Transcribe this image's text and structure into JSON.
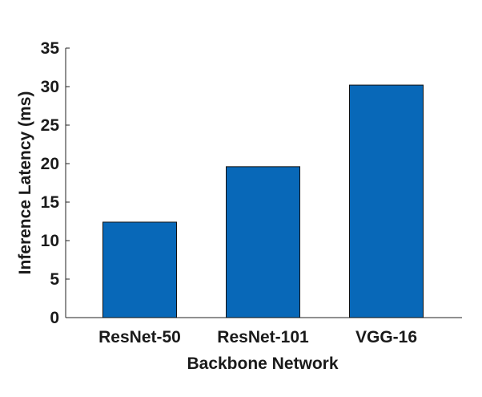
{
  "chart_data": {
    "type": "bar",
    "title": "",
    "xlabel": "Backbone Network",
    "ylabel": "Inference Latency (ms)",
    "categories": [
      "ResNet-50",
      "ResNet-101",
      "VGG-16"
    ],
    "values": [
      12.4,
      19.6,
      30.2
    ],
    "ylim": [
      0,
      35
    ],
    "yticks": [
      0,
      5,
      10,
      15,
      20,
      25,
      30,
      35
    ],
    "grid": false,
    "legend": "none",
    "colors": {
      "bar_fill": "#0868b8",
      "bar_stroke": "#111111",
      "axis": "#222222"
    }
  }
}
